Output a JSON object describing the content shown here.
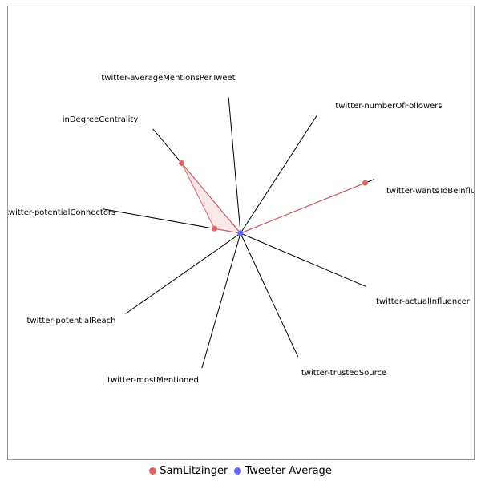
{
  "chart_data": {
    "type": "radar",
    "title": "",
    "axes": [
      "twitter-averageMentionsPerTweet",
      "twitter-numberOfFollowers",
      "twitter-wantsToBeInfluenced",
      "twitter-actualInfluencer",
      "twitter-trustedSource",
      "twitter-mostMentioned",
      "twitter-potentialReach",
      "twitter-potentialConnectors",
      "inDegreeCentrality"
    ],
    "range": [
      0,
      1
    ],
    "series": [
      {
        "name": "SamLitzinger",
        "color": "#e06666",
        "values": [
          0.0,
          0.0,
          0.97,
          0.0,
          0.0,
          0.0,
          0.0,
          0.19,
          0.66
        ]
      },
      {
        "name": "Tweeter Average",
        "color": "#6666ff",
        "values": [
          0.0,
          0.0,
          0.0,
          0.0,
          0.0,
          0.0,
          0.0,
          0.0,
          0.0
        ]
      }
    ],
    "legend_position": "bottom"
  }
}
